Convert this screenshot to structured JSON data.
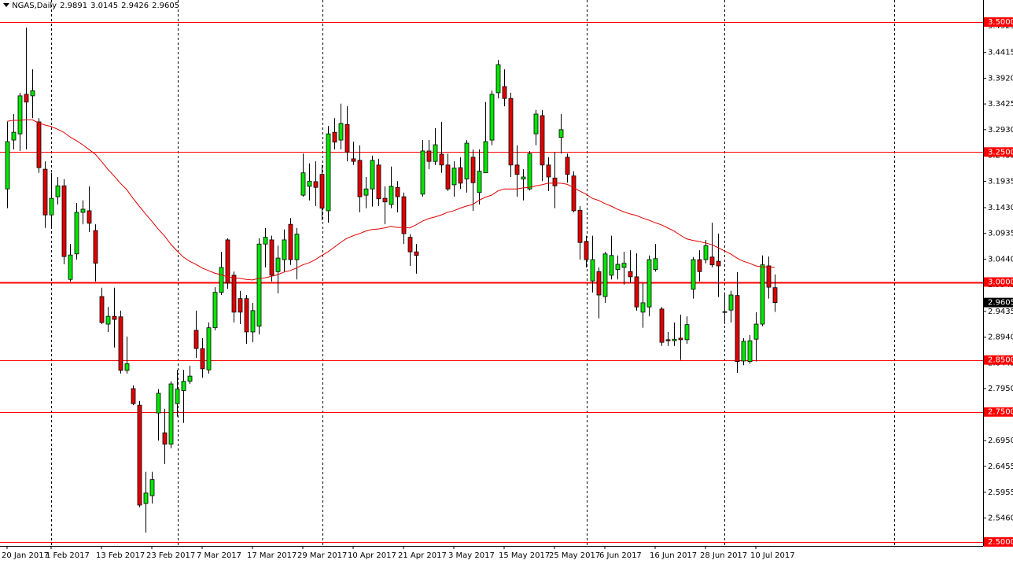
{
  "chart_data": {
    "type": "candlestick",
    "title": "NGAS,Daily",
    "categories": [
      "20 Jan 2017",
      null,
      null,
      null,
      null,
      null,
      null,
      "1 Feb 2017",
      null,
      null,
      null,
      null,
      null,
      null,
      null,
      "13 Feb 2017",
      null,
      null,
      null,
      null,
      null,
      null,
      null,
      "23 Feb 2017",
      null,
      null,
      null,
      null,
      null,
      null,
      null,
      "7 Mar 2017",
      null,
      null,
      null,
      null,
      null,
      null,
      null,
      "17 Mar 2017",
      null,
      null,
      null,
      null,
      null,
      null,
      null,
      "29 Mar 2017",
      null,
      null,
      null,
      null,
      null,
      null,
      null,
      "10 Apr 2017",
      null,
      null,
      null,
      null,
      null,
      null,
      null,
      "21 Apr 2017",
      null,
      null,
      null,
      null,
      null,
      null,
      null,
      "3 May 2017",
      null,
      null,
      null,
      null,
      null,
      null,
      null,
      "15 May 2017",
      null,
      null,
      null,
      null,
      null,
      null,
      null,
      "25 May 2017",
      null,
      null,
      null,
      null,
      null,
      null,
      null,
      "6 Jun 2017",
      null,
      null,
      null,
      null,
      null,
      null,
      null,
      "16 Jun 2017",
      null,
      null,
      null,
      null,
      null,
      null,
      null,
      "28 Jun 2017",
      null,
      null,
      null,
      null,
      null,
      null,
      null,
      "10 Jul 2017",
      null,
      null,
      null
    ],
    "open": [
      3.179,
      3.273,
      3.285,
      3.361,
      3.358,
      3.308,
      3.217,
      3.129,
      3.164,
      3.185,
      3.005,
      3.054,
      3.134,
      3.137,
      3.099,
      2.972,
      2.919,
      2.934,
      2.933,
      2.83,
      2.795,
      2.763,
      2.574,
      2.589,
      2.748,
      2.71,
      2.688,
      2.766,
      2.791,
      2.809,
      2.907,
      2.872,
      2.831,
      2.912,
      2.98,
      3.081,
      3.013,
      2.968,
      2.968,
      2.904,
      2.915,
      3.073,
      3.081,
      3.02,
      3.043,
      3.111,
      3.043,
      3.167,
      3.184,
      3.193,
      3.207,
      3.137,
      3.288,
      3.273,
      3.303,
      3.237,
      3.234,
      3.167,
      3.179,
      3.225,
      3.161,
      3.149,
      3.182,
      3.164,
      3.086,
      3.058,
      3.169,
      3.252,
      3.232,
      3.246,
      3.225,
      3.187,
      3.22,
      3.198,
      3.24,
      3.172,
      3.21,
      3.273,
      3.364,
      3.376,
      3.353,
      3.225,
      3.198,
      3.179,
      3.285,
      3.32,
      3.225,
      3.2,
      3.278,
      3.24,
      3.204,
      3.138,
      3.078,
      3.002,
      3.02,
      2.972,
      3.013,
      3.024,
      3.028,
      3.02,
      3.01,
      2.942,
      2.952,
      3.024,
      2.948,
      2.889,
      2.887,
      2.892,
      2.889,
      2.986,
      3.043,
      3.043,
      3.048,
      3.04,
      2.942,
      2.946,
      2.974,
      2.848,
      2.847,
      2.89,
      2.919,
      3.031,
      2.9891
    ],
    "high": [
      3.308,
      3.323,
      3.364,
      3.489,
      3.409,
      3.315,
      3.232,
      3.21,
      3.202,
      3.198,
      3.073,
      3.152,
      3.157,
      3.184,
      3.111,
      2.989,
      2.952,
      2.989,
      2.945,
      2.895,
      2.801,
      2.771,
      2.635,
      2.635,
      2.794,
      2.756,
      2.809,
      2.831,
      2.831,
      2.839,
      2.945,
      2.892,
      2.922,
      2.99,
      3.058,
      3.084,
      3.02,
      2.983,
      2.975,
      2.96,
      3.084,
      3.104,
      3.089,
      3.07,
      3.101,
      3.123,
      3.104,
      3.247,
      3.228,
      3.232,
      3.225,
      3.3,
      3.315,
      3.343,
      3.338,
      3.27,
      3.263,
      3.202,
      3.243,
      3.237,
      3.184,
      3.222,
      3.194,
      3.172,
      3.092,
      3.073,
      3.273,
      3.273,
      3.296,
      3.308,
      3.247,
      3.232,
      3.24,
      3.273,
      3.255,
      3.255,
      3.346,
      3.368,
      3.427,
      3.409,
      3.364,
      3.263,
      3.217,
      3.252,
      3.331,
      3.331,
      3.24,
      3.25,
      3.323,
      3.247,
      3.213,
      3.146,
      3.089,
      3.089,
      3.028,
      3.058,
      3.089,
      3.051,
      3.058,
      3.061,
      3.055,
      2.998,
      3.051,
      3.073,
      2.952,
      2.904,
      2.922,
      2.937,
      2.934,
      3.048,
      3.061,
      3.081,
      3.114,
      3.093,
      2.98,
      2.983,
      3.019,
      2.892,
      2.898,
      2.942,
      3.051,
      3.049,
      3.0145
    ],
    "low": [
      3.142,
      3.255,
      3.252,
      3.255,
      3.315,
      3.21,
      3.104,
      3.104,
      3.149,
      3.034,
      3.001,
      3.043,
      3.111,
      3.096,
      3.001,
      2.919,
      2.904,
      2.874,
      2.824,
      2.824,
      2.763,
      2.567,
      2.518,
      2.574,
      2.695,
      2.65,
      2.68,
      2.741,
      2.729,
      2.804,
      2.854,
      2.816,
      2.824,
      2.907,
      2.975,
      2.987,
      2.922,
      2.919,
      2.881,
      2.884,
      2.899,
      3.028,
      3.001,
      2.978,
      3.02,
      3.033,
      3.005,
      3.164,
      3.157,
      3.146,
      3.119,
      3.114,
      3.255,
      3.255,
      3.232,
      3.225,
      3.134,
      3.142,
      3.145,
      3.146,
      3.111,
      3.142,
      3.134,
      3.073,
      3.031,
      3.016,
      3.164,
      3.217,
      3.225,
      3.21,
      3.175,
      3.164,
      3.179,
      3.172,
      3.137,
      3.149,
      3.21,
      3.263,
      3.353,
      3.338,
      3.202,
      3.164,
      3.157,
      3.176,
      3.263,
      3.194,
      3.175,
      3.142,
      3.247,
      3.191,
      3.134,
      3.043,
      3.028,
      2.98,
      2.93,
      2.96,
      3.005,
      3.005,
      2.995,
      2.998,
      2.945,
      2.912,
      2.934,
      3.02,
      2.877,
      2.877,
      2.877,
      2.85,
      2.881,
      2.968,
      3.001,
      3.036,
      3.028,
      2.971,
      2.919,
      2.922,
      2.825,
      2.84,
      2.843,
      2.847,
      2.915,
      2.968,
      2.9426
    ],
    "close": [
      3.27,
      3.288,
      3.358,
      3.346,
      3.368,
      3.22,
      3.129,
      3.161,
      3.185,
      3.049,
      3.052,
      3.134,
      3.14,
      3.113,
      3.036,
      2.922,
      2.934,
      2.928,
      2.83,
      2.843,
      2.766,
      2.571,
      2.594,
      2.62,
      2.786,
      2.688,
      2.804,
      2.794,
      2.809,
      2.819,
      2.872,
      2.833,
      2.912,
      2.98,
      3.028,
      2.998,
      2.942,
      2.942,
      2.904,
      2.945,
      3.073,
      3.086,
      3.013,
      3.046,
      3.081,
      3.043,
      3.092,
      3.21,
      3.194,
      3.182,
      3.142,
      3.285,
      3.269,
      3.305,
      3.25,
      3.232,
      3.164,
      3.179,
      3.234,
      3.16,
      3.154,
      3.184,
      3.164,
      3.093,
      3.058,
      3.051,
      3.252,
      3.232,
      3.264,
      3.225,
      3.179,
      3.219,
      3.19,
      3.267,
      3.191,
      3.213,
      3.27,
      3.361,
      3.418,
      3.353,
      3.225,
      3.207,
      3.202,
      3.247,
      3.323,
      3.225,
      3.202,
      3.185,
      3.293,
      3.207,
      3.137,
      3.076,
      3.043,
      3.043,
      2.975,
      3.054,
      3.051,
      3.034,
      3.036,
      3.01,
      2.952,
      2.96,
      3.043,
      3.045,
      2.884,
      2.887,
      2.89,
      2.889,
      2.918,
      3.043,
      3.02,
      3.07,
      3.033,
      3.031,
      2.943,
      2.975,
      2.847,
      2.886,
      2.887,
      2.919,
      3.033,
      2.99,
      2.9605
    ],
    "up_color": "#00e600",
    "down_color": "#e00000",
    "ma": {
      "color": "#e00000",
      "values": [
        3.309,
        3.311,
        3.311,
        3.312,
        3.312,
        3.306,
        3.302,
        3.299,
        3.294,
        3.288,
        3.279,
        3.272,
        3.264,
        3.255,
        3.246,
        3.232,
        3.217,
        3.204,
        3.19,
        3.178,
        3.161,
        3.146,
        3.131,
        3.117,
        3.102,
        3.089,
        3.073,
        3.06,
        3.048,
        3.04,
        3.034,
        3.027,
        3.022,
        3.017,
        3.014,
        3.01,
        3.008,
        3.007,
        3.005,
        3.004,
        3.007,
        3.008,
        3.011,
        3.014,
        3.019,
        3.022,
        3.027,
        3.033,
        3.037,
        3.043,
        3.051,
        3.058,
        3.067,
        3.076,
        3.084,
        3.089,
        3.093,
        3.098,
        3.101,
        3.102,
        3.104,
        3.107,
        3.105,
        3.105,
        3.104,
        3.11,
        3.117,
        3.122,
        3.125,
        3.129,
        3.134,
        3.137,
        3.142,
        3.146,
        3.149,
        3.157,
        3.163,
        3.167,
        3.175,
        3.179,
        3.179,
        3.179,
        3.181,
        3.182,
        3.185,
        3.187,
        3.19,
        3.19,
        3.19,
        3.188,
        3.182,
        3.175,
        3.169,
        3.161,
        3.157,
        3.151,
        3.146,
        3.14,
        3.135,
        3.131,
        3.128,
        3.123,
        3.119,
        3.114,
        3.11,
        3.104,
        3.098,
        3.09,
        3.083,
        3.08,
        3.078,
        3.075,
        3.072,
        3.066,
        3.06,
        3.054,
        3.046,
        3.04,
        3.036,
        3.031,
        3.029,
        3.029,
        3.028
      ]
    },
    "ylim": [
      2.4924,
      3.5424
    ],
    "yticks": [
      3.4925,
      3.4415,
      {
        "value": 3.392,
        "label": "3.3920"
      },
      3.3425,
      {
        "value": 3.293,
        "label": "3.2930"
      },
      3.2435,
      3.1935,
      {
        "value": 3.143,
        "label": "3.1430"
      },
      3.0935,
      {
        "value": 3.044,
        "label": "3.0440"
      },
      2.9945,
      2.9435,
      {
        "value": 2.894,
        "label": "2.8940"
      },
      2.8445,
      {
        "value": 2.795,
        "label": "2.7950"
      },
      2.7455,
      {
        "value": 2.695,
        "label": "2.6950"
      },
      2.6455,
      2.5955,
      {
        "value": 2.546,
        "label": "2.5460"
      }
    ],
    "grid": false,
    "hlines": [
      {
        "value": 3.5,
        "label": "3.5000"
      },
      {
        "value": 3.25,
        "label": "3.2500"
      },
      {
        "value": 3,
        "label": "3.0000"
      },
      {
        "value": 2.85,
        "label": "2.8500"
      },
      {
        "value": 2.75,
        "label": "2.7500"
      },
      {
        "value": 2.5,
        "label": "2.5000"
      }
    ],
    "hline_color": "#ff0000"
  }
}
